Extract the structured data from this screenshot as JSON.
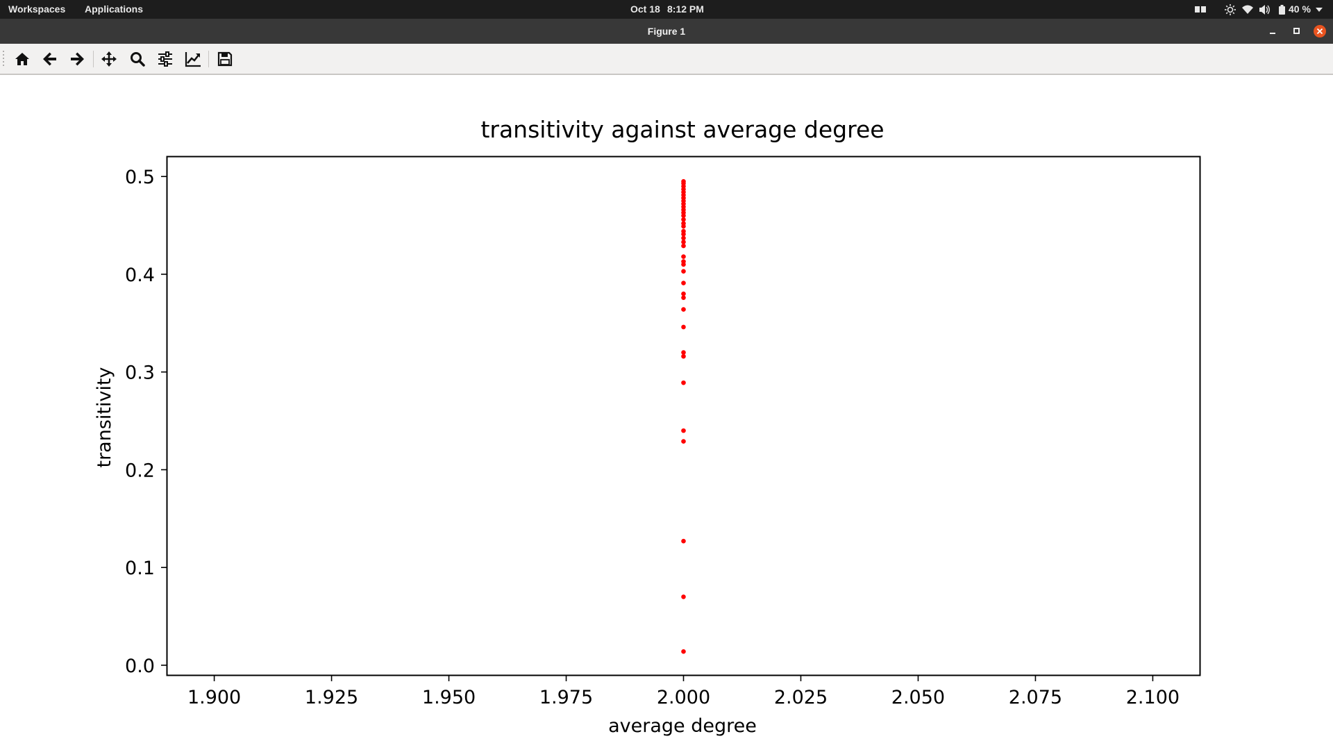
{
  "topbar": {
    "workspaces": "Workspaces",
    "applications": "Applications",
    "date": "Oct 18",
    "time": "8:12 PM",
    "battery": "40 %"
  },
  "window": {
    "title": "Figure 1"
  },
  "toolbar": {
    "tools": [
      {
        "name": "home-button",
        "icon": "home-icon"
      },
      {
        "name": "back-button",
        "icon": "arrow-left-icon"
      },
      {
        "name": "forward-button",
        "icon": "arrow-right-icon"
      },
      {
        "name": "pan-button",
        "icon": "move-icon"
      },
      {
        "name": "zoom-button",
        "icon": "magnifier-icon"
      },
      {
        "name": "configure-subplots-button",
        "icon": "sliders-icon"
      },
      {
        "name": "edit-axis-button",
        "icon": "chart-line-icon"
      },
      {
        "name": "save-button",
        "icon": "floppy-icon"
      }
    ]
  },
  "chart_data": {
    "type": "scatter",
    "title": "transitivity against average degree",
    "xlabel": "average degree",
    "ylabel": "transitivity",
    "xlim": [
      1.89,
      2.11
    ],
    "ylim": [
      -0.01,
      0.52
    ],
    "xticks": [
      "1.900",
      "1.925",
      "1.950",
      "1.975",
      "2.000",
      "2.025",
      "2.050",
      "2.075",
      "2.100"
    ],
    "xtick_values": [
      1.9,
      1.925,
      1.95,
      1.975,
      2.0,
      2.025,
      2.05,
      2.075,
      2.1
    ],
    "yticks": [
      "0.0",
      "0.1",
      "0.2",
      "0.3",
      "0.4",
      "0.5"
    ],
    "ytick_values": [
      0.0,
      0.1,
      0.2,
      0.3,
      0.4,
      0.5
    ],
    "marker_color": "#ff0000",
    "grid": false,
    "points": [
      {
        "x": 2.0,
        "y": 0.014
      },
      {
        "x": 2.0,
        "y": 0.07
      },
      {
        "x": 2.0,
        "y": 0.127
      },
      {
        "x": 2.0,
        "y": 0.229
      },
      {
        "x": 2.0,
        "y": 0.24
      },
      {
        "x": 2.0,
        "y": 0.289
      },
      {
        "x": 2.0,
        "y": 0.316
      },
      {
        "x": 2.0,
        "y": 0.32
      },
      {
        "x": 2.0,
        "y": 0.346
      },
      {
        "x": 2.0,
        "y": 0.364
      },
      {
        "x": 2.0,
        "y": 0.376
      },
      {
        "x": 2.0,
        "y": 0.38
      },
      {
        "x": 2.0,
        "y": 0.391
      },
      {
        "x": 2.0,
        "y": 0.403
      },
      {
        "x": 2.0,
        "y": 0.41
      },
      {
        "x": 2.0,
        "y": 0.413
      },
      {
        "x": 2.0,
        "y": 0.418
      },
      {
        "x": 2.0,
        "y": 0.429
      },
      {
        "x": 2.0,
        "y": 0.433
      },
      {
        "x": 2.0,
        "y": 0.437
      },
      {
        "x": 2.0,
        "y": 0.441
      },
      {
        "x": 2.0,
        "y": 0.444
      },
      {
        "x": 2.0,
        "y": 0.449
      },
      {
        "x": 2.0,
        "y": 0.452
      },
      {
        "x": 2.0,
        "y": 0.456
      },
      {
        "x": 2.0,
        "y": 0.46
      },
      {
        "x": 2.0,
        "y": 0.463
      },
      {
        "x": 2.0,
        "y": 0.466
      },
      {
        "x": 2.0,
        "y": 0.469
      },
      {
        "x": 2.0,
        "y": 0.472
      },
      {
        "x": 2.0,
        "y": 0.475
      },
      {
        "x": 2.0,
        "y": 0.478
      },
      {
        "x": 2.0,
        "y": 0.481
      },
      {
        "x": 2.0,
        "y": 0.484
      },
      {
        "x": 2.0,
        "y": 0.487
      },
      {
        "x": 2.0,
        "y": 0.49
      },
      {
        "x": 2.0,
        "y": 0.493
      },
      {
        "x": 2.0,
        "y": 0.495
      }
    ]
  }
}
